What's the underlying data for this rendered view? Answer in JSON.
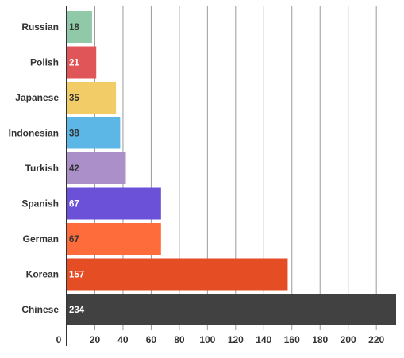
{
  "chart_data": {
    "type": "bar",
    "orientation": "horizontal",
    "categories": [
      "Russian",
      "Polish",
      "Japanese",
      "Indonesian",
      "Turkish",
      "Spanish",
      "German",
      "Korean",
      "Chinese"
    ],
    "values": [
      18,
      21,
      35,
      38,
      42,
      67,
      67,
      157,
      234
    ],
    "value_labels": [
      "18",
      "21",
      "35",
      "38",
      "42",
      "67",
      "67",
      "157",
      "234"
    ],
    "colors": [
      "#8fc9a8",
      "#e05557",
      "#f1cc67",
      "#5cb7e6",
      "#ab8fc9",
      "#6b50d8",
      "#ff6c3b",
      "#e54d25",
      "#414141"
    ],
    "value_label_colors": [
      "#333333",
      "#ffffff",
      "#333333",
      "#333333",
      "#333333",
      "#ffffff",
      "#333333",
      "#ffffff",
      "#ffffff"
    ],
    "xticks": [
      0,
      20,
      40,
      60,
      80,
      100,
      120,
      140,
      160,
      180,
      200,
      220
    ],
    "xtick_labels": [
      "0",
      "20",
      "40",
      "60",
      "80",
      "100",
      "120",
      "140",
      "160",
      "180",
      "200",
      "220"
    ],
    "xlim": [
      0,
      234
    ],
    "grid": "vertical",
    "legend": "none",
    "title": "",
    "xlabel": "",
    "ylabel": ""
  }
}
